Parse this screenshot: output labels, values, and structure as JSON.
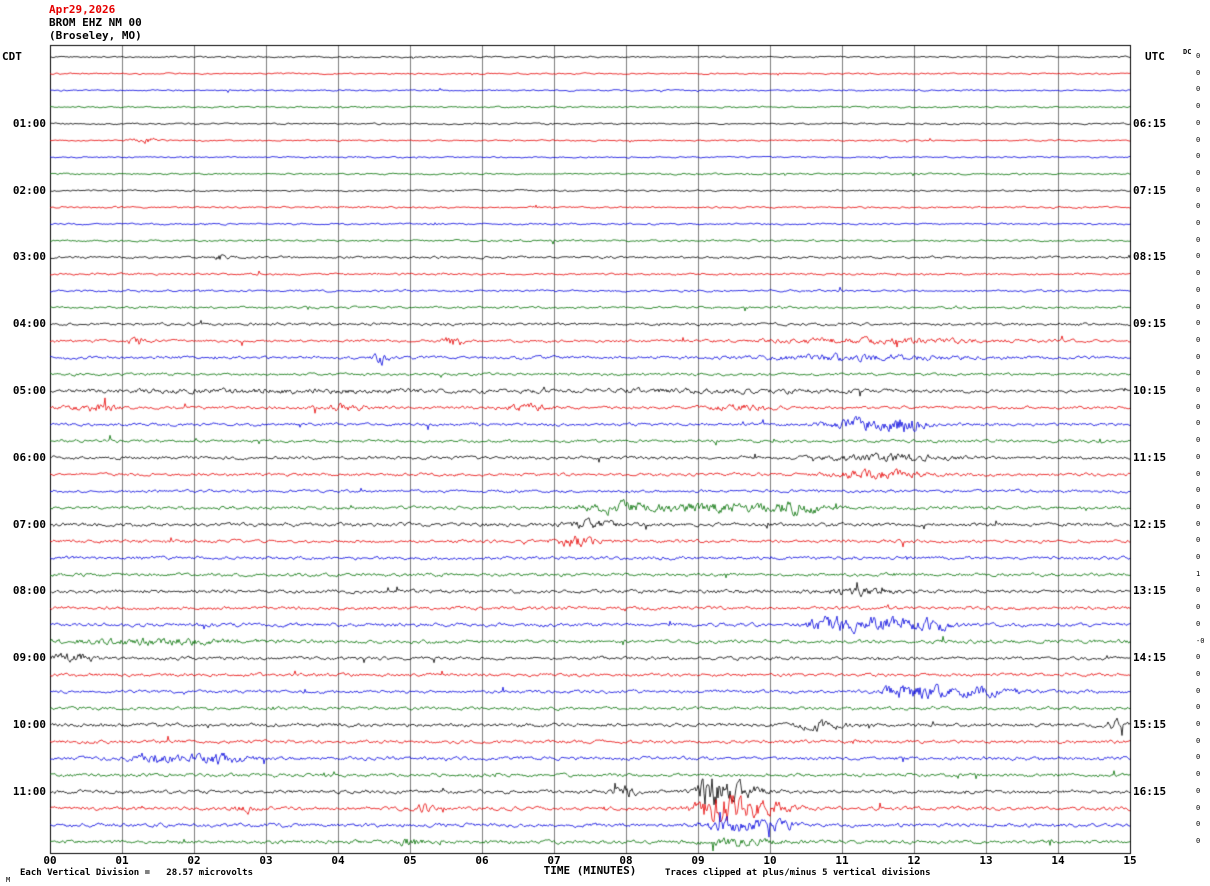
{
  "header": {
    "date": "Apr29,2026",
    "station": "BROM EHZ NM 00",
    "location": "(Broseley, MO)"
  },
  "axes": {
    "left_label": "CDT",
    "right_label": "UTC",
    "x_label": "TIME (MINUTES)",
    "x_ticks": [
      "00",
      "01",
      "02",
      "03",
      "04",
      "05",
      "06",
      "07",
      "08",
      "09",
      "10",
      "11",
      "12",
      "13",
      "14",
      "15"
    ],
    "left_times": [
      "01:00",
      "02:00",
      "03:00",
      "04:00",
      "05:00",
      "06:00",
      "07:00",
      "08:00",
      "09:00",
      "10:00",
      "11:00"
    ],
    "right_times": [
      "06:15",
      "07:15",
      "08:15",
      "09:15",
      "10:15",
      "11:15",
      "12:15",
      "13:15",
      "14:15",
      "15:15",
      "16:15"
    ]
  },
  "right_margin": {
    "label": "DC",
    "values": [
      "0",
      "0",
      "0",
      "0",
      "0",
      "0",
      "0",
      "0",
      "0",
      "0",
      "0",
      "0",
      "0",
      "0",
      "0",
      "0",
      "0",
      "0",
      "0",
      "0",
      "0",
      "0",
      "0",
      "0",
      "0",
      "0",
      "0",
      "0",
      "0",
      "0",
      "0",
      "1",
      "0",
      "0",
      "0",
      "-0",
      "0",
      "0",
      "0",
      "0",
      "0",
      "0",
      "0",
      "0",
      "0",
      "0",
      "0",
      "0"
    ]
  },
  "footer": {
    "left": "Each Vertical Division =   28.57 microvolts",
    "right": "Traces clipped at plus/minus 5 vertical divisions"
  },
  "corner": {
    "mark": "M"
  },
  "chart_data": {
    "type": "line",
    "title": "BROM EHZ NM 00 (Broseley, MO) helicorder, Apr29,2026",
    "xlabel": "TIME (MINUTES)",
    "x_range_minutes": [
      0,
      15
    ],
    "rows": 48,
    "row_duration_minutes": 15,
    "first_row_start_cdt": "00:00",
    "utc_offset_hours": -5,
    "microvolts_per_division": 28.57,
    "clip_note": "Traces clipped at plus/minus 5 vertical divisions",
    "grid": true,
    "trace_color_cycle": [
      "#000000",
      "#e60000",
      "#0000dd",
      "#007000"
    ],
    "values_note": "Continuous seismic background noise; per-row relative amplitude in base_noise, transient bursts in events (minute = center within row, width = gaussian sigma in minutes, amp = relative burst amplitude).",
    "base_noise": [
      0.55,
      0.5,
      0.5,
      0.55,
      0.55,
      0.5,
      0.5,
      0.6,
      0.6,
      0.6,
      0.6,
      0.65,
      0.8,
      0.7,
      0.7,
      0.75,
      0.9,
      0.9,
      1.0,
      0.9,
      1.1,
      1.0,
      1.0,
      1.0,
      1.1,
      1.0,
      1.0,
      1.1,
      1.2,
      1.1,
      1.1,
      1.1,
      1.2,
      1.1,
      1.2,
      1.2,
      1.1,
      1.1,
      1.1,
      1.1,
      1.2,
      1.1,
      1.2,
      1.1,
      1.2,
      1.2,
      1.2,
      1.2
    ],
    "events": [
      {
        "row": 5,
        "minute": 1.3,
        "width": 0.15,
        "amp": 2.5
      },
      {
        "row": 12,
        "minute": 2.4,
        "width": 0.08,
        "amp": 3
      },
      {
        "row": 17,
        "minute": 1.2,
        "width": 0.1,
        "amp": 3.5
      },
      {
        "row": 17,
        "minute": 5.6,
        "width": 0.12,
        "amp": 3.5
      },
      {
        "row": 17,
        "minute": 11.5,
        "width": 1.6,
        "amp": 1.6
      },
      {
        "row": 18,
        "minute": 4.6,
        "width": 0.1,
        "amp": 4
      },
      {
        "row": 18,
        "minute": 11.2,
        "width": 1.4,
        "amp": 1.6
      },
      {
        "row": 20,
        "minute": 3.0,
        "width": 2.5,
        "amp": 0.8
      },
      {
        "row": 20,
        "minute": 9.0,
        "width": 2.5,
        "amp": 0.8
      },
      {
        "row": 21,
        "minute": 0.6,
        "width": 0.3,
        "amp": 2.2
      },
      {
        "row": 21,
        "minute": 4.1,
        "width": 0.3,
        "amp": 2
      },
      {
        "row": 21,
        "minute": 6.6,
        "width": 0.3,
        "amp": 2
      },
      {
        "row": 21,
        "minute": 9.6,
        "width": 0.4,
        "amp": 2
      },
      {
        "row": 22,
        "minute": 11.3,
        "width": 0.5,
        "amp": 3.5
      },
      {
        "row": 22,
        "minute": 11.9,
        "width": 0.25,
        "amp": 4.5
      },
      {
        "row": 24,
        "minute": 11.6,
        "width": 0.8,
        "amp": 2.2
      },
      {
        "row": 25,
        "minute": 11.5,
        "width": 0.6,
        "amp": 2.8
      },
      {
        "row": 27,
        "minute": 7.9,
        "width": 0.5,
        "amp": 3.2
      },
      {
        "row": 27,
        "minute": 9.3,
        "width": 0.8,
        "amp": 2.6
      },
      {
        "row": 27,
        "minute": 10.4,
        "width": 0.4,
        "amp": 3.2
      },
      {
        "row": 28,
        "minute": 7.5,
        "width": 0.4,
        "amp": 2.2
      },
      {
        "row": 29,
        "minute": 7.3,
        "width": 0.25,
        "amp": 3.5
      },
      {
        "row": 32,
        "minute": 11.2,
        "width": 0.4,
        "amp": 2.2
      },
      {
        "row": 34,
        "minute": 10.8,
        "width": 0.3,
        "amp": 4
      },
      {
        "row": 34,
        "minute": 11.5,
        "width": 0.5,
        "amp": 4.5
      },
      {
        "row": 34,
        "minute": 12.2,
        "width": 0.3,
        "amp": 3.5
      },
      {
        "row": 35,
        "minute": 1.5,
        "width": 1.2,
        "amp": 1.6
      },
      {
        "row": 36,
        "minute": 0.3,
        "width": 0.3,
        "amp": 3
      },
      {
        "row": 38,
        "minute": 11.8,
        "width": 0.25,
        "amp": 3
      },
      {
        "row": 38,
        "minute": 12.2,
        "width": 0.4,
        "amp": 3.6
      },
      {
        "row": 38,
        "minute": 13.0,
        "width": 0.4,
        "amp": 3.2
      },
      {
        "row": 40,
        "minute": 10.7,
        "width": 0.3,
        "amp": 2.8
      },
      {
        "row": 40,
        "minute": 14.8,
        "width": 0.15,
        "amp": 3
      },
      {
        "row": 42,
        "minute": 1.5,
        "width": 0.3,
        "amp": 3.5
      },
      {
        "row": 42,
        "minute": 2.3,
        "width": 0.4,
        "amp": 3.2
      },
      {
        "row": 44,
        "minute": 8.0,
        "width": 0.15,
        "amp": 3.5
      },
      {
        "row": 44,
        "minute": 9.15,
        "width": 0.12,
        "amp": 14
      },
      {
        "row": 44,
        "minute": 9.5,
        "width": 0.35,
        "amp": 6
      },
      {
        "row": 45,
        "minute": 2.7,
        "width": 0.1,
        "amp": 3
      },
      {
        "row": 45,
        "minute": 5.2,
        "width": 0.1,
        "amp": 3
      },
      {
        "row": 45,
        "minute": 9.3,
        "width": 0.3,
        "amp": 12
      },
      {
        "row": 45,
        "minute": 9.9,
        "width": 0.35,
        "amp": 5
      },
      {
        "row": 46,
        "minute": 9.5,
        "width": 0.4,
        "amp": 4
      },
      {
        "row": 46,
        "minute": 10.1,
        "width": 0.3,
        "amp": 3
      },
      {
        "row": 47,
        "minute": 5.0,
        "width": 0.25,
        "amp": 2.2
      },
      {
        "row": 47,
        "minute": 9.6,
        "width": 0.5,
        "amp": 2.2
      }
    ]
  }
}
